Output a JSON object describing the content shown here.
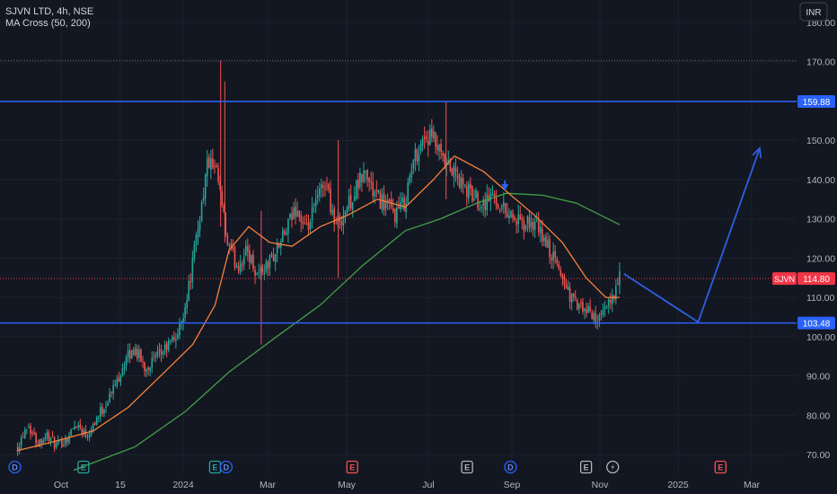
{
  "header": {
    "title": "SJVN LTD, 4h, NSE",
    "indicator": "MA Cross (50, 200)",
    "currency": "INR"
  },
  "colors": {
    "background": "#131722",
    "grid": "#1e222d",
    "axis_text": "#b2b5be",
    "candle_up": "#26a69a",
    "candle_down": "#ef5350",
    "ma50": "#f7813a",
    "ma200": "#43a047",
    "level_line": "#2962ff",
    "projection": "#2e5fe0",
    "price_label": "#f23645"
  },
  "chart_data": {
    "type": "candlestick",
    "y_range": [
      66,
      182
    ],
    "y_ticks": [
      "180.00",
      "170.00",
      "160.00",
      "150.00",
      "140.00",
      "130.00",
      "120.00",
      "110.00",
      "100.00",
      "90.00",
      "80.00",
      "70.00"
    ],
    "x_ticks": [
      "Oct",
      "15",
      "2024",
      "Mar",
      "May",
      "Jul",
      "Sep",
      "Nov",
      "2025",
      "Mar"
    ],
    "levels": [
      {
        "label": "159.88",
        "value": 159.88
      },
      {
        "label": "103.48",
        "value": 103.48
      }
    ],
    "dotted_high": 170.3,
    "current_price": {
      "symbol": "SJVN",
      "label": "114.80",
      "value": 114.8
    },
    "price_path": [
      {
        "date": "2023-09-22",
        "price": 72
      },
      {
        "date": "2023-09-29",
        "price": 78
      },
      {
        "date": "2023-10-06",
        "price": 73
      },
      {
        "date": "2023-10-13",
        "price": 75
      },
      {
        "date": "2023-10-20",
        "price": 72
      },
      {
        "date": "2023-10-27",
        "price": 74
      },
      {
        "date": "2023-11-03",
        "price": 78
      },
      {
        "date": "2023-11-10",
        "price": 75
      },
      {
        "date": "2023-11-17",
        "price": 79
      },
      {
        "date": "2023-11-24",
        "price": 83
      },
      {
        "date": "2023-12-01",
        "price": 88
      },
      {
        "date": "2023-12-08",
        "price": 94
      },
      {
        "date": "2023-12-15",
        "price": 97
      },
      {
        "date": "2023-12-22",
        "price": 92
      },
      {
        "date": "2024-01-01",
        "price": 95
      },
      {
        "date": "2024-01-08",
        "price": 98
      },
      {
        "date": "2024-01-15",
        "price": 101
      },
      {
        "date": "2024-01-22",
        "price": 112
      },
      {
        "date": "2024-01-29",
        "price": 128
      },
      {
        "date": "2024-02-05",
        "price": 145
      },
      {
        "date": "2024-02-12",
        "price": 140
      },
      {
        "date": "2024-02-19",
        "price": 123
      },
      {
        "date": "2024-02-26",
        "price": 118
      },
      {
        "date": "2024-03-04",
        "price": 122
      },
      {
        "date": "2024-03-11",
        "price": 116
      },
      {
        "date": "2024-03-18",
        "price": 118
      },
      {
        "date": "2024-03-25",
        "price": 122
      },
      {
        "date": "2024-04-01",
        "price": 127
      },
      {
        "date": "2024-04-08",
        "price": 133
      },
      {
        "date": "2024-04-15",
        "price": 126
      },
      {
        "date": "2024-04-22",
        "price": 134
      },
      {
        "date": "2024-04-29",
        "price": 140
      },
      {
        "date": "2024-05-06",
        "price": 128
      },
      {
        "date": "2024-05-13",
        "price": 132
      },
      {
        "date": "2024-05-20",
        "price": 137
      },
      {
        "date": "2024-05-27",
        "price": 142
      },
      {
        "date": "2024-06-03",
        "price": 136
      },
      {
        "date": "2024-06-10",
        "price": 134
      },
      {
        "date": "2024-06-17",
        "price": 131
      },
      {
        "date": "2024-06-24",
        "price": 134
      },
      {
        "date": "2024-07-01",
        "price": 145
      },
      {
        "date": "2024-07-08",
        "price": 151
      },
      {
        "date": "2024-07-15",
        "price": 150
      },
      {
        "date": "2024-07-22",
        "price": 144
      },
      {
        "date": "2024-07-29",
        "price": 142
      },
      {
        "date": "2024-08-05",
        "price": 138
      },
      {
        "date": "2024-08-12",
        "price": 136
      },
      {
        "date": "2024-08-19",
        "price": 134
      },
      {
        "date": "2024-08-26",
        "price": 136
      },
      {
        "date": "2024-09-02",
        "price": 133
      },
      {
        "date": "2024-09-09",
        "price": 131
      },
      {
        "date": "2024-09-16",
        "price": 128
      },
      {
        "date": "2024-09-23",
        "price": 129
      },
      {
        "date": "2024-09-30",
        "price": 126
      },
      {
        "date": "2024-10-07",
        "price": 121
      },
      {
        "date": "2024-10-14",
        "price": 116
      },
      {
        "date": "2024-10-21",
        "price": 110
      },
      {
        "date": "2024-10-28",
        "price": 107
      },
      {
        "date": "2024-11-04",
        "price": 106
      },
      {
        "date": "2024-11-11",
        "price": 104
      },
      {
        "date": "2024-11-18",
        "price": 109
      },
      {
        "date": "2024-11-25",
        "price": 114.8
      }
    ],
    "ma50": [
      {
        "date": "2023-09-22",
        "price": 71
      },
      {
        "date": "2023-10-15",
        "price": 73
      },
      {
        "date": "2023-11-15",
        "price": 76
      },
      {
        "date": "2023-12-10",
        "price": 82
      },
      {
        "date": "2024-01-05",
        "price": 91
      },
      {
        "date": "2024-01-25",
        "price": 98
      },
      {
        "date": "2024-02-10",
        "price": 108
      },
      {
        "date": "2024-02-20",
        "price": 122
      },
      {
        "date": "2024-03-05",
        "price": 128
      },
      {
        "date": "2024-03-20",
        "price": 124
      },
      {
        "date": "2024-04-05",
        "price": 123
      },
      {
        "date": "2024-04-25",
        "price": 128
      },
      {
        "date": "2024-05-15",
        "price": 131
      },
      {
        "date": "2024-06-05",
        "price": 135
      },
      {
        "date": "2024-06-25",
        "price": 133
      },
      {
        "date": "2024-07-15",
        "price": 140
      },
      {
        "date": "2024-07-30",
        "price": 146
      },
      {
        "date": "2024-08-20",
        "price": 142
      },
      {
        "date": "2024-09-05",
        "price": 137
      },
      {
        "date": "2024-09-25",
        "price": 131
      },
      {
        "date": "2024-10-15",
        "price": 124
      },
      {
        "date": "2024-11-01",
        "price": 115
      },
      {
        "date": "2024-11-15",
        "price": 110
      },
      {
        "date": "2024-11-25",
        "price": 110
      }
    ],
    "ma200": [
      {
        "date": "2023-11-01",
        "price": 66
      },
      {
        "date": "2023-12-15",
        "price": 72
      },
      {
        "date": "2024-01-20",
        "price": 81
      },
      {
        "date": "2024-02-20",
        "price": 91
      },
      {
        "date": "2024-03-25",
        "price": 100
      },
      {
        "date": "2024-04-25",
        "price": 108
      },
      {
        "date": "2024-05-25",
        "price": 118
      },
      {
        "date": "2024-06-25",
        "price": 127
      },
      {
        "date": "2024-07-20",
        "price": 130
      },
      {
        "date": "2024-08-15",
        "price": 134
      },
      {
        "date": "2024-09-05",
        "price": 136.5
      },
      {
        "date": "2024-10-01",
        "price": 136
      },
      {
        "date": "2024-10-25",
        "price": 134
      },
      {
        "date": "2024-11-25",
        "price": 128.5
      }
    ],
    "cross_marker": {
      "date": "2024-09-04",
      "price": 137.5
    },
    "projection_path": [
      {
        "date": "2024-11-28",
        "price": 116
      },
      {
        "date": "2025-01-20",
        "price": 103.7
      },
      {
        "date": "2025-03-05",
        "price": 148
      }
    ],
    "events": [
      {
        "letter": "D",
        "date": "2023-09-20",
        "kind": "dividend"
      },
      {
        "letter": "E",
        "date": "2023-11-08",
        "kind": "earnings-up"
      },
      {
        "letter": "E",
        "date": "2024-02-10",
        "kind": "earnings-up"
      },
      {
        "letter": "D",
        "date": "2024-02-18",
        "kind": "dividend"
      },
      {
        "letter": "E",
        "date": "2024-05-18",
        "kind": "earnings-down"
      },
      {
        "letter": "E",
        "date": "2024-08-08",
        "kind": "earnings-neutral"
      },
      {
        "letter": "D",
        "date": "2024-09-08",
        "kind": "dividend"
      },
      {
        "letter": "E",
        "date": "2024-11-01",
        "kind": "earnings-neutral"
      },
      {
        "letter": "",
        "date": "2024-11-20",
        "kind": "split-bolt"
      },
      {
        "letter": "E",
        "date": "2025-02-05",
        "kind": "earnings-down"
      }
    ]
  }
}
